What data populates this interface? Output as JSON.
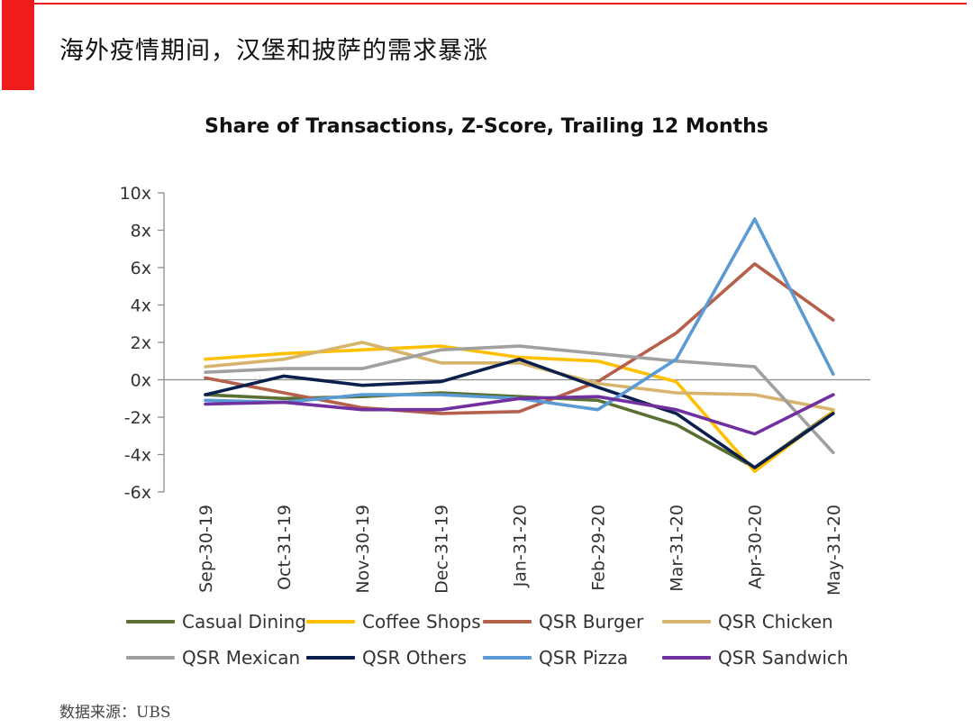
{
  "slide": {
    "title": "海外疫情期间，汉堡和披萨的需求暴涨",
    "source": "数据来源：UBS",
    "accent_color": "#ee1c1c"
  },
  "chart_data": {
    "type": "line",
    "title": "Share of Transactions, Z-Score, Trailing 12 Months",
    "xlabel": "",
    "ylabel": "",
    "categories": [
      "Sep-30-19",
      "Oct-31-19",
      "Nov-30-19",
      "Dec-31-19",
      "Jan-31-20",
      "Feb-29-20",
      "Mar-31-20",
      "Apr-30-20",
      "May-31-20"
    ],
    "ylim": [
      -6,
      10
    ],
    "yticks": [
      -6,
      -4,
      -2,
      0,
      2,
      4,
      6,
      8,
      10
    ],
    "ytick_labels": [
      "-6x",
      "-4x",
      "-2x",
      "0x",
      "2x",
      "4x",
      "6x",
      "8x",
      "10x"
    ],
    "legend_position": "bottom",
    "series": [
      {
        "name": "Casual Dining",
        "color": "#5a7033",
        "values": [
          -0.8,
          -1.0,
          -0.9,
          -0.7,
          -0.9,
          -1.1,
          -2.4,
          -4.7,
          -1.7
        ]
      },
      {
        "name": "Coffee Shops",
        "color": "#ffc000",
        "values": [
          1.1,
          1.4,
          1.6,
          1.8,
          1.2,
          1.0,
          -0.1,
          -4.9,
          -1.7
        ]
      },
      {
        "name": "QSR Burger",
        "color": "#b4604a",
        "values": [
          0.1,
          -0.7,
          -1.5,
          -1.8,
          -1.7,
          -0.1,
          2.5,
          6.2,
          3.2
        ]
      },
      {
        "name": "QSR Chicken",
        "color": "#d6b46c",
        "values": [
          0.7,
          1.1,
          2.0,
          0.9,
          0.9,
          -0.2,
          -0.7,
          -0.8,
          -1.6
        ]
      },
      {
        "name": "QSR Mexican",
        "color": "#a0a0a0",
        "values": [
          0.4,
          0.6,
          0.6,
          1.6,
          1.8,
          1.4,
          1.0,
          0.7,
          -3.9
        ]
      },
      {
        "name": "QSR Others",
        "color": "#0b1f4d",
        "values": [
          -0.8,
          0.2,
          -0.3,
          -0.1,
          1.1,
          -0.4,
          -1.8,
          -4.7,
          -1.8
        ]
      },
      {
        "name": "QSR Pizza",
        "color": "#5b9bd5",
        "values": [
          -1.1,
          -1.2,
          -0.8,
          -0.8,
          -1.0,
          -1.6,
          1.1,
          8.6,
          0.3
        ]
      },
      {
        "name": "QSR Sandwich",
        "color": "#7030a0",
        "values": [
          -1.3,
          -1.2,
          -1.6,
          -1.6,
          -1.0,
          -0.9,
          -1.6,
          -2.9,
          -0.8
        ]
      }
    ]
  }
}
